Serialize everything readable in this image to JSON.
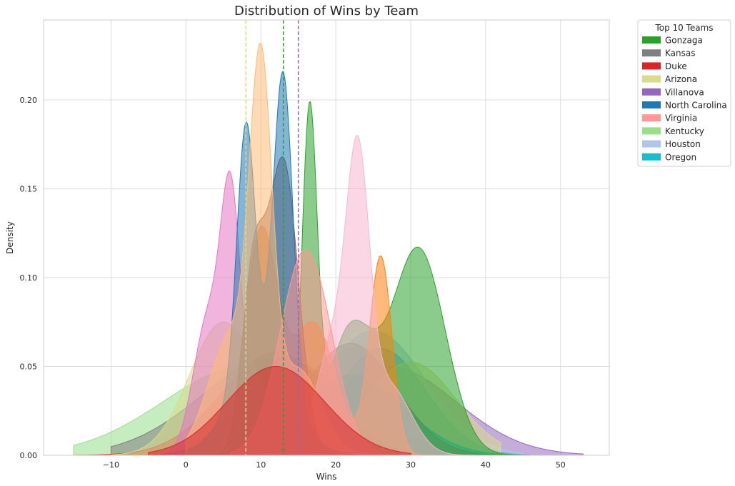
{
  "chart_data": {
    "type": "area",
    "title": "Distribution of Wins by Team",
    "xlabel": "Wins",
    "ylabel": "Density",
    "xlim": [
      -19,
      56.5
    ],
    "ylim": [
      0,
      0.245
    ],
    "xticks": [
      -10,
      0,
      10,
      20,
      30,
      40,
      50
    ],
    "xtick_labels": [
      "−10",
      "0",
      "10",
      "20",
      "30",
      "40",
      "50"
    ],
    "yticks": [
      0.0,
      0.05,
      0.1,
      0.15,
      0.2
    ],
    "ytick_labels": [
      "0.00",
      "0.05",
      "0.10",
      "0.15",
      "0.20"
    ],
    "grid": true,
    "legend": {
      "title": "Top 10 Teams",
      "placement": "outside-right-top",
      "entries": [
        {
          "label": "Gonzaga",
          "color": "#2ca02c"
        },
        {
          "label": "Kansas",
          "color": "#7f7f7f"
        },
        {
          "label": "Duke",
          "color": "#d62728"
        },
        {
          "label": "Arizona",
          "color": "#dbdb8d"
        },
        {
          "label": "Villanova",
          "color": "#9467bd"
        },
        {
          "label": "North Carolina",
          "color": "#1f77b4"
        },
        {
          "label": "Virginia",
          "color": "#ff9896"
        },
        {
          "label": "Kentucky",
          "color": "#98df8a"
        },
        {
          "label": "Houston",
          "color": "#aec7e8"
        },
        {
          "label": "Oregon",
          "color": "#17becf"
        }
      ]
    },
    "vlines": [
      {
        "x": 8,
        "color": "#dbdb8d"
      },
      {
        "x": 13,
        "color": "#2ca02c"
      },
      {
        "x": 15,
        "color": "#9467bd"
      }
    ],
    "series": [
      {
        "color": "#98df8a",
        "components": [
          [
            8,
            11,
            1
          ]
        ],
        "peak": 0.05,
        "range": [
          -15,
          45
        ]
      },
      {
        "color": "#7f7f7f",
        "components": [
          [
            12,
            10,
            1
          ]
        ],
        "peak": 0.055,
        "range": [
          -10,
          46
        ]
      },
      {
        "color": "#d62728",
        "components": [
          [
            12,
            7.2,
            1
          ]
        ],
        "peak": 0.058,
        "range": [
          -15,
          42
        ]
      },
      {
        "color": "#9467bd",
        "components": [
          [
            27,
            9,
            1
          ]
        ],
        "peak": 0.05,
        "range": [
          4,
          53
        ]
      },
      {
        "color": "#1f77b4",
        "components": [
          [
            26,
            6,
            1
          ]
        ],
        "peak": 0.06,
        "range": [
          5,
          45
        ]
      },
      {
        "color": "#aec7e8",
        "components": [
          [
            25,
            7,
            1
          ]
        ],
        "peak": 0.07,
        "range": [
          5,
          45
        ]
      },
      {
        "color": "#dbdb8d",
        "components": [
          [
            5,
            4.5,
            1
          ],
          [
            30,
            6,
            0.7
          ]
        ],
        "peak": 0.075,
        "range": [
          -10,
          42
        ]
      },
      {
        "color": "#17becf",
        "components": [
          [
            22,
            7,
            1
          ]
        ],
        "peak": 0.045,
        "range": [
          0,
          42
        ]
      },
      {
        "color": "#7f7f7f",
        "components": [
          [
            22,
            6,
            1
          ],
          [
            8,
            4,
            0.4
          ]
        ],
        "peak": 0.063,
        "range": [
          -5,
          45
        ]
      },
      {
        "color": "#2ca02c",
        "components": [
          [
            31,
            3.6,
            1
          ],
          [
            22,
            3,
            0.6
          ],
          [
            16.5,
            1,
            1.6
          ]
        ],
        "peak": 0.199,
        "range": [
          0,
          45
        ]
      },
      {
        "color": "#ff7f0e",
        "components": [
          [
            10,
            2.2,
            1
          ],
          [
            26,
            1.5,
            0.9
          ],
          [
            17,
            3,
            0.6
          ]
        ],
        "peak": 0.129,
        "range": [
          0,
          40
        ]
      },
      {
        "color": "#e377c2",
        "components": [
          [
            6,
            1.3,
            1
          ],
          [
            3,
            2,
            0.6
          ],
          [
            10,
            2,
            0.3
          ]
        ],
        "peak": 0.16,
        "range": [
          -5,
          28
        ]
      },
      {
        "color": "#f7b6d2",
        "components": [
          [
            23,
            1.5,
            1
          ],
          [
            20,
            2.5,
            0.5
          ],
          [
            27,
            3,
            0.3
          ]
        ],
        "peak": 0.18,
        "range": [
          5,
          40
        ]
      },
      {
        "color": "#8c564b",
        "components": [
          [
            13,
            2,
            1
          ],
          [
            9,
            1.5,
            0.6
          ]
        ],
        "peak": 0.168,
        "range": [
          0,
          35
        ]
      },
      {
        "color": "#1f77b4",
        "components": [
          [
            13,
            1.3,
            1
          ],
          [
            8,
            1.2,
            0.8
          ],
          [
            10,
            4,
            0.3
          ]
        ],
        "peak": 0.216,
        "range": [
          0,
          35
        ]
      },
      {
        "color": "#ffbb78",
        "components": [
          [
            10,
            1.5,
            1
          ],
          [
            6,
            3,
            0.35
          ],
          [
            15,
            3,
            0.25
          ]
        ],
        "peak": 0.232,
        "range": [
          0,
          30
        ]
      },
      {
        "color": "#ff9896",
        "components": [
          [
            16,
            3.4,
            1
          ]
        ],
        "peak": 0.116,
        "range": [
          6,
          26
        ]
      },
      {
        "color": "#d62728",
        "components": [
          [
            12,
            6.5,
            1
          ]
        ],
        "peak": 0.05,
        "range": [
          -5,
          30
        ]
      }
    ]
  }
}
